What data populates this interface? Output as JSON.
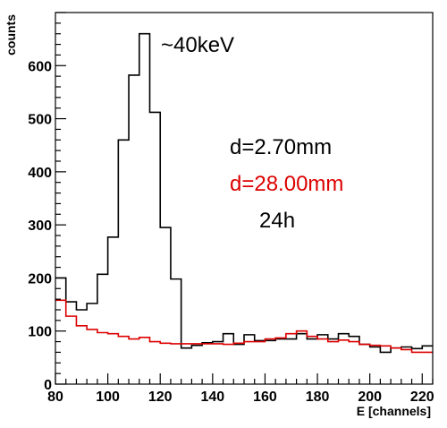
{
  "chart_data": {
    "type": "histogram",
    "xlabel": "E [channels]",
    "ylabel": "counts",
    "xlim": [
      80,
      224
    ],
    "ylim": [
      0,
      700
    ],
    "x_ticks": [
      80,
      100,
      120,
      140,
      160,
      180,
      200,
      220
    ],
    "y_ticks": [
      0,
      100,
      200,
      300,
      400,
      500,
      600
    ],
    "bin_edges": [
      80,
      84,
      88,
      92,
      96,
      100,
      104,
      108,
      112,
      116,
      120,
      124,
      128,
      132,
      136,
      140,
      144,
      148,
      152,
      156,
      160,
      164,
      168,
      172,
      176,
      180,
      184,
      188,
      192,
      196,
      200,
      204,
      208,
      212,
      216,
      220,
      224
    ],
    "series": [
      {
        "name": "d=2.70mm",
        "color": "#000000",
        "values": [
          200,
          155,
          140,
          152,
          207,
          277,
          460,
          582,
          660,
          512,
          295,
          198,
          68,
          73,
          78,
          80,
          95,
          75,
          93,
          82,
          82,
          85,
          85,
          95,
          85,
          93,
          85,
          95,
          90,
          75,
          70,
          60,
          68,
          70,
          67,
          72
        ]
      },
      {
        "name": "d=28.00mm",
        "color": "#dd0000",
        "values": [
          158,
          128,
          110,
          103,
          97,
          95,
          90,
          85,
          88,
          80,
          77,
          76,
          76,
          76,
          76,
          76,
          75,
          77,
          80,
          80,
          85,
          87,
          95,
          100,
          90,
          85,
          80,
          83,
          80,
          75,
          73,
          72,
          68,
          65,
          60,
          60
        ]
      }
    ],
    "annotations": [
      {
        "text": "~40keV",
        "color": "#000000"
      },
      {
        "text": "d=2.70mm",
        "color": "#000000"
      },
      {
        "text": "d=28.00mm",
        "color": "#dd0000"
      },
      {
        "text": "24h",
        "color": "#000000"
      }
    ]
  }
}
